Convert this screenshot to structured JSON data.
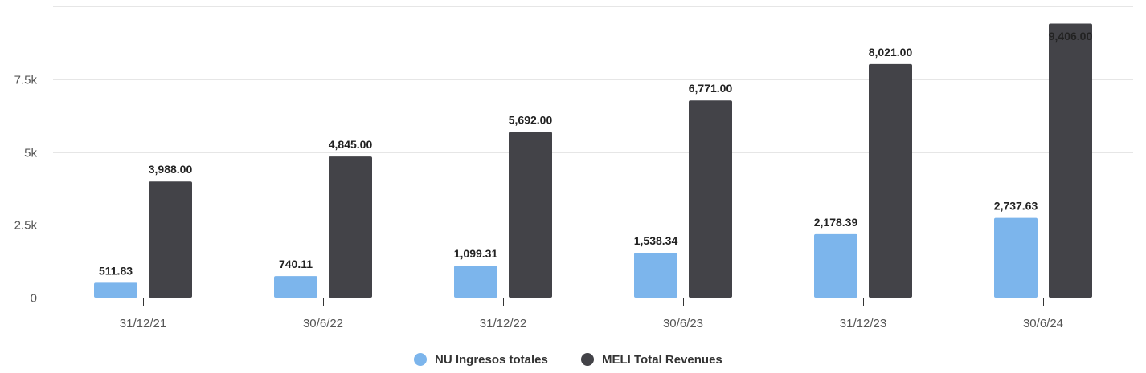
{
  "chart_data": {
    "type": "bar",
    "categories": [
      "31/12/21",
      "30/6/22",
      "31/12/22",
      "30/6/23",
      "31/12/23",
      "30/6/24"
    ],
    "series": [
      {
        "name": "NU Ingresos totales",
        "color": "#7cb5ec",
        "values": [
          511.83,
          740.11,
          1099.31,
          1538.34,
          2178.39,
          2737.63
        ],
        "labels": [
          "511.83",
          "740.11",
          "1,099.31",
          "1,538.34",
          "2,178.39",
          "2,737.63"
        ]
      },
      {
        "name": "MELI Total Revenues",
        "color": "#434348",
        "values": [
          3988.0,
          4845.0,
          5692.0,
          6771.0,
          8021.0,
          9406.0
        ],
        "labels": [
          "3,988.00",
          "4,845.00",
          "5,692.00",
          "6,771.00",
          "8,021.00",
          "9,406.00"
        ]
      }
    ],
    "yticks": [
      {
        "value": 0,
        "label": "0"
      },
      {
        "value": 2500,
        "label": "2.5k"
      },
      {
        "value": 5000,
        "label": "5k"
      },
      {
        "value": 7500,
        "label": "7.5k"
      },
      {
        "value": 10000,
        "label": ""
      }
    ],
    "ylim": [
      0,
      10000
    ],
    "grid": true,
    "legend_position": "bottom-center",
    "title": "",
    "xlabel": "",
    "ylabel": ""
  }
}
